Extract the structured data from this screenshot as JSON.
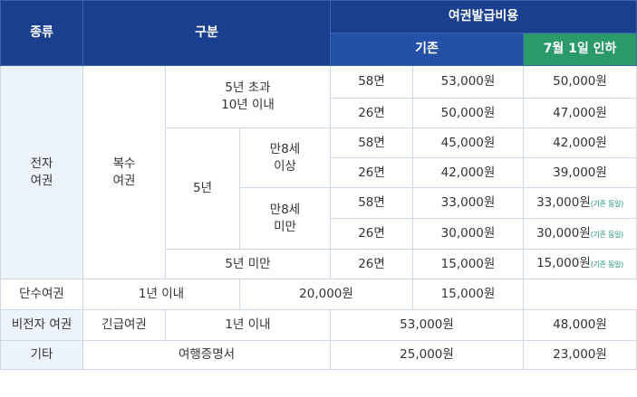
{
  "header": {
    "type": "종류",
    "category": "구분",
    "fee_group": "여권발급비용",
    "existing": "기존",
    "new": "7월 1일 인하"
  },
  "rows": {
    "electronic": "전자\n여권",
    "multiple": "복수\n여권",
    "over5": "5년 초과\n10년 이내",
    "five_years": "5년",
    "age8_over": "만8세\n이상",
    "age8_under": "만8세\n미만",
    "under5": "5년 미만",
    "single": "단수여권",
    "within1": "1년 이내",
    "non_electronic": "비전자 여권",
    "emergency": "긴급여권",
    "within1_b": "1년 이내",
    "other": "기타",
    "travel_cert": "여행증명서"
  },
  "pages": {
    "p58": "58면",
    "p26": "26면",
    "p58b": "58면",
    "p26b": "26면",
    "p58c": "58면",
    "p26c": "26면",
    "p26d": "26면"
  },
  "fees": {
    "r1_old": "53,000원",
    "r1_new": "50,000원",
    "r2_old": "50,000원",
    "r2_new": "47,000원",
    "r3_old": "45,000원",
    "r3_new": "42,000원",
    "r4_old": "42,000원",
    "r4_new": "39,000원",
    "r5_old": "33,000원",
    "r5_new": "33,000원",
    "r6_old": "30,000원",
    "r6_new": "30,000원",
    "r7_old": "15,000원",
    "r7_new": "15,000원",
    "r8_old": "20,000원",
    "r8_new": "15,000원",
    "r9_old": "53,000원",
    "r9_new": "48,000원",
    "r10_old": "25,000원",
    "r10_new": "23,000원"
  },
  "note_same": "(기존 동일)"
}
